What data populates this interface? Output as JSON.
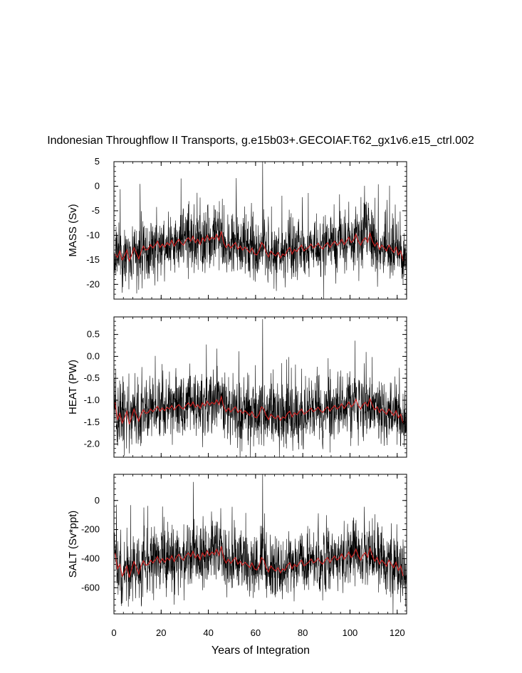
{
  "chart_data": {
    "type": "line",
    "title": "Indonesian Throughflow II Transports, g.e15b03+.GECOIAF.T62_gx1v6.e15_ctrl.002",
    "xlabel": "Years of Integration",
    "xlim": [
      0,
      124
    ],
    "x_ticks": [
      0,
      20,
      40,
      60,
      80,
      100,
      120
    ],
    "x_tick_labels": [
      "0",
      "20",
      "40",
      "60",
      "80",
      "100",
      "120"
    ],
    "series_colors": {
      "monthly": "#000000",
      "annual_mean": "#cc2222"
    },
    "panels": [
      {
        "name": "mass",
        "ylabel": "MASS (Sv)",
        "ylim": [
          -23,
          5
        ],
        "y_ticks": [
          5,
          0,
          -5,
          -10,
          -15,
          -20
        ],
        "y_tick_labels": [
          "5",
          "0",
          "-5",
          "-10",
          "-15",
          "-20"
        ],
        "baseline": -13.5,
        "annual_mean": [
          -13.8,
          -14.5,
          -13.2,
          -15.0,
          -14.2,
          -13.0,
          -15.2,
          -14.0,
          -12.5,
          -13.6,
          -14.8,
          -13.4,
          -12.2,
          -13.0,
          -12.8,
          -11.9,
          -12.6,
          -12.0,
          -11.2,
          -12.5,
          -11.8,
          -12.4,
          -11.5,
          -12.0,
          -11.0,
          -12.2,
          -11.4,
          -10.8,
          -11.6,
          -12.0,
          -11.0,
          -10.5,
          -11.2,
          -10.2,
          -11.5,
          -10.8,
          -11.9,
          -10.5,
          -11.2,
          -10.0,
          -11.0,
          -10.4,
          -10.8,
          -9.8,
          -11.0,
          -9.2,
          -11.5,
          -12.5,
          -11.8,
          -12.6,
          -12.0,
          -11.5,
          -12.8,
          -12.2,
          -13.0,
          -12.4,
          -12.9,
          -13.5,
          -12.6,
          -13.8,
          -14.0,
          -13.2,
          -11.5,
          -12.0,
          -13.5,
          -14.4,
          -13.2,
          -13.8,
          -14.2,
          -13.5,
          -14.6,
          -13.8,
          -14.1,
          -13.0,
          -12.5,
          -13.8,
          -12.9,
          -13.3,
          -12.6,
          -12.0,
          -13.2,
          -12.8,
          -12.4,
          -11.8,
          -12.6,
          -12.2,
          -11.6,
          -12.4,
          -12.8,
          -12.0,
          -11.5,
          -12.5,
          -11.8,
          -11.2,
          -12.0,
          -11.6,
          -10.8,
          -11.9,
          -11.2,
          -10.4,
          -11.5,
          -11.0,
          -9.8,
          -11.2,
          -12.0,
          -11.0,
          -10.5,
          -11.4,
          -9.6,
          -11.2,
          -12.2,
          -11.5,
          -12.8,
          -12.0,
          -12.6,
          -13.2,
          -12.0,
          -12.8,
          -13.5,
          -12.4,
          -14.0,
          -13.2,
          -15.2
        ],
        "spike": {
          "year": 63,
          "value": 5
        }
      },
      {
        "name": "heat",
        "ylabel": "HEAT (PW)",
        "ylim": [
          -2.3,
          0.9
        ],
        "y_ticks": [
          0.5,
          0.0,
          -0.5,
          -1.0,
          -1.5,
          -2.0
        ],
        "y_tick_labels": [
          "0.5",
          "0.0",
          "-0.5",
          "-1.0",
          "-1.5",
          "-2.0"
        ],
        "baseline": -1.3,
        "annual_mean": [
          -1.05,
          -1.45,
          -1.3,
          -1.52,
          -1.4,
          -1.25,
          -1.55,
          -1.38,
          -1.2,
          -1.35,
          -1.48,
          -1.32,
          -1.22,
          -1.3,
          -1.28,
          -1.2,
          -1.26,
          -1.2,
          -1.14,
          -1.25,
          -1.18,
          -1.24,
          -1.16,
          -1.2,
          -1.12,
          -1.22,
          -1.15,
          -1.1,
          -1.17,
          -1.2,
          -1.12,
          -1.06,
          -1.13,
          -1.04,
          -1.16,
          -1.1,
          -1.19,
          -1.06,
          -1.13,
          -1.02,
          -1.11,
          -1.05,
          -1.09,
          -0.99,
          -1.1,
          -0.92,
          -1.15,
          -1.26,
          -1.18,
          -1.27,
          -1.2,
          -1.15,
          -1.28,
          -1.22,
          -1.3,
          -1.24,
          -1.29,
          -1.35,
          -1.26,
          -1.38,
          -1.4,
          -1.32,
          -1.15,
          -1.2,
          -1.35,
          -1.44,
          -1.32,
          -1.38,
          -1.42,
          -1.35,
          -1.46,
          -1.38,
          -1.41,
          -1.3,
          -1.25,
          -1.38,
          -1.29,
          -1.33,
          -1.26,
          -1.2,
          -1.32,
          -1.28,
          -1.24,
          -1.18,
          -1.26,
          -1.22,
          -1.16,
          -1.24,
          -1.28,
          -1.2,
          -1.15,
          -1.25,
          -1.18,
          -1.12,
          -1.2,
          -1.16,
          -1.08,
          -1.19,
          -1.12,
          -1.04,
          -1.15,
          -1.1,
          -0.98,
          -1.12,
          -1.2,
          -1.1,
          -1.05,
          -1.14,
          -0.96,
          -1.12,
          -1.22,
          -1.15,
          -1.28,
          -1.2,
          -1.26,
          -1.32,
          -1.2,
          -1.28,
          -1.35,
          -1.24,
          -1.4,
          -1.32,
          -1.52
        ],
        "spike": {
          "year": 63,
          "value": 0.85
        }
      },
      {
        "name": "salt",
        "ylabel": "SALT (Sv*ppt)",
        "ylim": [
          -780,
          180
        ],
        "y_ticks": [
          0,
          -200,
          -400,
          -600
        ],
        "y_tick_labels": [
          "0",
          "-200",
          "-400",
          "-600"
        ],
        "baseline": -460,
        "annual_mean": [
          -360,
          -470,
          -440,
          -520,
          -490,
          -450,
          -530,
          -470,
          -420,
          -460,
          -505,
          -450,
          -415,
          -445,
          -440,
          -410,
          -430,
          -410,
          -385,
          -430,
          -400,
          -425,
          -395,
          -410,
          -380,
          -420,
          -390,
          -370,
          -398,
          -410,
          -380,
          -360,
          -385,
          -350,
          -395,
          -372,
          -408,
          -360,
          -385,
          -345,
          -378,
          -355,
          -372,
          -335,
          -378,
          -315,
          -395,
          -430,
          -405,
          -432,
          -410,
          -392,
          -438,
          -418,
          -445,
          -425,
          -442,
          -460,
          -430,
          -470,
          -478,
          -450,
          -392,
          -410,
          -462,
          -492,
          -450,
          -470,
          -485,
          -462,
          -498,
          -470,
          -480,
          -445,
          -428,
          -470,
          -440,
          -455,
          -430,
          -410,
          -450,
          -438,
          -425,
          -402,
          -430,
          -418,
          -396,
          -425,
          -438,
          -410,
          -392,
          -428,
          -402,
          -382,
          -410,
          -396,
          -368,
          -405,
          -382,
          -355,
          -392,
          -375,
          -335,
          -382,
          -410,
          -375,
          -358,
          -390,
          -328,
          -382,
          -418,
          -392,
          -438,
          -410,
          -430,
          -452,
          -410,
          -438,
          -462,
          -425,
          -480,
          -452,
          -520
        ],
        "spike": {
          "year": 63,
          "value": 180
        }
      }
    ]
  }
}
